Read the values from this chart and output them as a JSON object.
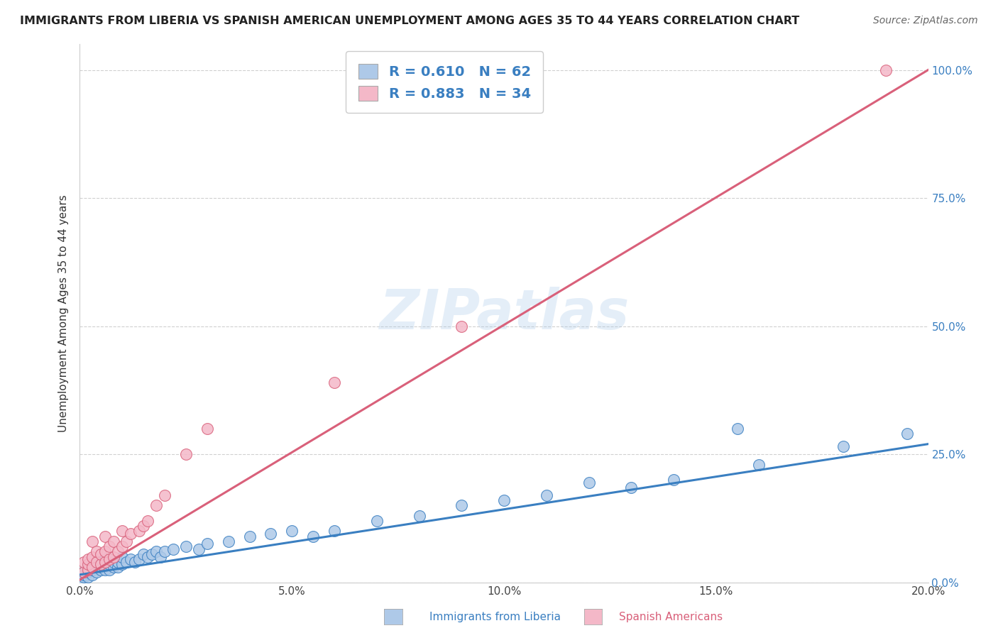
{
  "title": "IMMIGRANTS FROM LIBERIA VS SPANISH AMERICAN UNEMPLOYMENT AMONG AGES 35 TO 44 YEARS CORRELATION CHART",
  "source": "Source: ZipAtlas.com",
  "ylabel": "Unemployment Among Ages 35 to 44 years",
  "xlim": [
    0.0,
    0.2
  ],
  "ylim": [
    0.0,
    1.05
  ],
  "xtick_labels": [
    "0.0%",
    "5.0%",
    "10.0%",
    "15.0%",
    "20.0%"
  ],
  "xtick_vals": [
    0.0,
    0.05,
    0.1,
    0.15,
    0.2
  ],
  "ytick_labels": [
    "0.0%",
    "25.0%",
    "50.0%",
    "75.0%",
    "100.0%"
  ],
  "ytick_vals": [
    0.0,
    0.25,
    0.5,
    0.75,
    1.0
  ],
  "blue_color": "#aec9e8",
  "pink_color": "#f4b8c8",
  "blue_line_color": "#3a7fc1",
  "pink_line_color": "#d9607a",
  "legend_r_blue": "R = 0.610",
  "legend_n_blue": "N = 62",
  "legend_r_pink": "R = 0.883",
  "legend_n_pink": "N = 34",
  "legend_text_color": "#3a7fc1",
  "watermark": "ZIPatlas",
  "blue_scatter_x": [
    0.0,
    0.001,
    0.001,
    0.001,
    0.002,
    0.002,
    0.002,
    0.002,
    0.003,
    0.003,
    0.003,
    0.003,
    0.004,
    0.004,
    0.004,
    0.005,
    0.005,
    0.005,
    0.006,
    0.006,
    0.006,
    0.007,
    0.007,
    0.007,
    0.008,
    0.008,
    0.009,
    0.009,
    0.01,
    0.01,
    0.011,
    0.012,
    0.013,
    0.014,
    0.015,
    0.016,
    0.017,
    0.018,
    0.019,
    0.02,
    0.022,
    0.025,
    0.028,
    0.03,
    0.035,
    0.04,
    0.045,
    0.05,
    0.055,
    0.06,
    0.07,
    0.08,
    0.09,
    0.1,
    0.11,
    0.12,
    0.13,
    0.14,
    0.155,
    0.16,
    0.18,
    0.195
  ],
  "blue_scatter_y": [
    0.005,
    0.01,
    0.015,
    0.02,
    0.01,
    0.02,
    0.025,
    0.03,
    0.015,
    0.025,
    0.03,
    0.035,
    0.02,
    0.03,
    0.04,
    0.025,
    0.03,
    0.04,
    0.025,
    0.035,
    0.045,
    0.025,
    0.035,
    0.045,
    0.03,
    0.04,
    0.03,
    0.04,
    0.035,
    0.05,
    0.04,
    0.045,
    0.04,
    0.045,
    0.055,
    0.05,
    0.055,
    0.06,
    0.05,
    0.06,
    0.065,
    0.07,
    0.065,
    0.075,
    0.08,
    0.09,
    0.095,
    0.1,
    0.09,
    0.1,
    0.12,
    0.13,
    0.15,
    0.16,
    0.17,
    0.195,
    0.185,
    0.2,
    0.3,
    0.23,
    0.265,
    0.29
  ],
  "pink_scatter_x": [
    0.001,
    0.001,
    0.002,
    0.002,
    0.002,
    0.003,
    0.003,
    0.003,
    0.004,
    0.004,
    0.005,
    0.005,
    0.006,
    0.006,
    0.006,
    0.007,
    0.007,
    0.008,
    0.008,
    0.009,
    0.01,
    0.01,
    0.011,
    0.012,
    0.014,
    0.015,
    0.016,
    0.018,
    0.02,
    0.025,
    0.03,
    0.06,
    0.09,
    0.19
  ],
  "pink_scatter_y": [
    0.02,
    0.04,
    0.025,
    0.035,
    0.045,
    0.03,
    0.05,
    0.08,
    0.04,
    0.06,
    0.035,
    0.055,
    0.04,
    0.06,
    0.09,
    0.045,
    0.07,
    0.05,
    0.08,
    0.06,
    0.07,
    0.1,
    0.08,
    0.095,
    0.1,
    0.11,
    0.12,
    0.15,
    0.17,
    0.25,
    0.3,
    0.39,
    0.5,
    1.0
  ],
  "blue_line_x": [
    0.0,
    0.2
  ],
  "blue_line_y": [
    0.015,
    0.27
  ],
  "pink_line_x": [
    0.0,
    0.2
  ],
  "pink_line_y": [
    0.005,
    1.0
  ]
}
